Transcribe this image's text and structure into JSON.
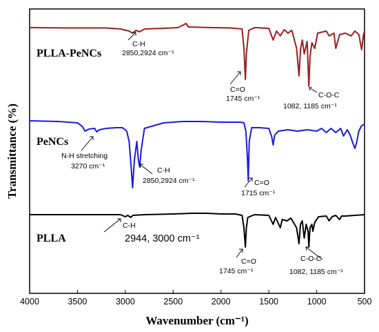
{
  "chart_data": {
    "type": "line",
    "xlabel": "Wavenumber (cm⁻¹)",
    "ylabel": "Transmittance (%)",
    "xlim": [
      4000,
      500
    ],
    "x_ticks": [
      "4000",
      "3500",
      "3000",
      "2500",
      "2000",
      "1500",
      "1000",
      "500"
    ],
    "grid": false,
    "legend": "none",
    "series": [
      {
        "name": "PLLA-PeNCs",
        "color": "#a01c1c",
        "baseline": 40,
        "points": [
          [
            4000,
            40
          ],
          [
            3600,
            40.5
          ],
          [
            3200,
            40.5
          ],
          [
            3050,
            42
          ],
          [
            2960,
            45
          ],
          [
            2924,
            48
          ],
          [
            2890,
            44
          ],
          [
            2850,
            46
          ],
          [
            2800,
            42
          ],
          [
            2600,
            41
          ],
          [
            2450,
            40
          ],
          [
            2365,
            34
          ],
          [
            2340,
            39
          ],
          [
            2100,
            40
          ],
          [
            1900,
            40.5
          ],
          [
            1780,
            42
          ],
          [
            1760,
            70
          ],
          [
            1745,
            115
          ],
          [
            1735,
            78
          ],
          [
            1710,
            44
          ],
          [
            1650,
            40
          ],
          [
            1500,
            41
          ],
          [
            1455,
            58
          ],
          [
            1420,
            45
          ],
          [
            1380,
            52
          ],
          [
            1340,
            43
          ],
          [
            1300,
            48
          ],
          [
            1260,
            44
          ],
          [
            1210,
            70
          ],
          [
            1185,
            110
          ],
          [
            1170,
            72
          ],
          [
            1150,
            58
          ],
          [
            1130,
            78
          ],
          [
            1100,
            60
          ],
          [
            1090,
            95
          ],
          [
            1082,
            125
          ],
          [
            1070,
            82
          ],
          [
            1050,
            62
          ],
          [
            1020,
            70
          ],
          [
            990,
            48
          ],
          [
            900,
            45
          ],
          [
            870,
            52
          ],
          [
            820,
            48
          ],
          [
            800,
            70
          ],
          [
            760,
            50
          ],
          [
            700,
            48
          ],
          [
            640,
            52
          ],
          [
            600,
            45
          ],
          [
            560,
            50
          ],
          [
            530,
            72
          ],
          [
            510,
            50
          ],
          [
            500,
            45
          ]
        ],
        "annotations": [
          {
            "text": "C-H",
            "kind": "label"
          },
          {
            "text": "2850,2924 cm⁻¹",
            "kind": "value"
          },
          {
            "text": "C=O",
            "kind": "label"
          },
          {
            "text": "1745 cm⁻¹",
            "kind": "value"
          },
          {
            "text": "C-O-C",
            "kind": "label"
          },
          {
            "text": "1082, 1185 cm⁻¹",
            "kind": "value"
          }
        ]
      },
      {
        "name": "PeNCs",
        "color": "#1a1ae0",
        "baseline": 175,
        "points": [
          [
            4000,
            175
          ],
          [
            3700,
            176
          ],
          [
            3500,
            178
          ],
          [
            3450,
            183
          ],
          [
            3420,
            190
          ],
          [
            3380,
            187
          ],
          [
            3320,
            186
          ],
          [
            3300,
            191
          ],
          [
            3270,
            188
          ],
          [
            3200,
            186
          ],
          [
            3100,
            185
          ],
          [
            3030,
            185
          ],
          [
            2985,
            190
          ],
          [
            2960,
            205
          ],
          [
            2940,
            240
          ],
          [
            2924,
            272
          ],
          [
            2905,
            232
          ],
          [
            2880,
            205
          ],
          [
            2865,
            230
          ],
          [
            2850,
            242
          ],
          [
            2835,
            218
          ],
          [
            2800,
            186
          ],
          [
            2600,
            178
          ],
          [
            2400,
            176
          ],
          [
            2200,
            176
          ],
          [
            2000,
            177
          ],
          [
            1800,
            177
          ],
          [
            1760,
            178
          ],
          [
            1740,
            190
          ],
          [
            1725,
            225
          ],
          [
            1715,
            262
          ],
          [
            1705,
            205
          ],
          [
            1680,
            185
          ],
          [
            1600,
            185
          ],
          [
            1500,
            186
          ],
          [
            1470,
            198
          ],
          [
            1455,
            210
          ],
          [
            1440,
            196
          ],
          [
            1400,
            190
          ],
          [
            1300,
            188
          ],
          [
            1200,
            190
          ],
          [
            1100,
            188
          ],
          [
            1000,
            190
          ],
          [
            950,
            186
          ],
          [
            900,
            192
          ],
          [
            850,
            186
          ],
          [
            800,
            192
          ],
          [
            750,
            186
          ],
          [
            720,
            197
          ],
          [
            680,
            188
          ],
          [
            650,
            196
          ],
          [
            620,
            208
          ],
          [
            600,
            215
          ],
          [
            580,
            205
          ],
          [
            560,
            190
          ],
          [
            530,
            182
          ],
          [
            500,
            180
          ]
        ],
        "annotations": [
          {
            "text": "N-H stretching",
            "kind": "label"
          },
          {
            "text": "3270 cm⁻¹",
            "kind": "value"
          },
          {
            "text": "C-H",
            "kind": "label"
          },
          {
            "text": "2850,2924 cm⁻¹",
            "kind": "value"
          },
          {
            "text": "C=O",
            "kind": "label"
          },
          {
            "text": "1715 cm⁻¹",
            "kind": "value"
          }
        ]
      },
      {
        "name": "PLLA",
        "color": "#000000",
        "baseline": 311,
        "points": [
          [
            4000,
            311
          ],
          [
            3600,
            311
          ],
          [
            3200,
            311
          ],
          [
            3050,
            311
          ],
          [
            3000,
            314
          ],
          [
            2975,
            312
          ],
          [
            2944,
            315
          ],
          [
            2920,
            312
          ],
          [
            2800,
            311
          ],
          [
            2500,
            310
          ],
          [
            2300,
            309
          ],
          [
            2150,
            309
          ],
          [
            2000,
            310
          ],
          [
            1850,
            310
          ],
          [
            1780,
            312
          ],
          [
            1760,
            330
          ],
          [
            1745,
            358
          ],
          [
            1735,
            330
          ],
          [
            1720,
            315
          ],
          [
            1650,
            311
          ],
          [
            1500,
            312
          ],
          [
            1455,
            325
          ],
          [
            1430,
            315
          ],
          [
            1380,
            330
          ],
          [
            1360,
            318
          ],
          [
            1310,
            320
          ],
          [
            1270,
            316
          ],
          [
            1210,
            330
          ],
          [
            1185,
            353
          ],
          [
            1170,
            325
          ],
          [
            1150,
            320
          ],
          [
            1130,
            345
          ],
          [
            1110,
            325
          ],
          [
            1090,
            335
          ],
          [
            1082,
            358
          ],
          [
            1070,
            330
          ],
          [
            1050,
            325
          ],
          [
            1040,
            335
          ],
          [
            1020,
            322
          ],
          [
            980,
            314
          ],
          [
            900,
            313
          ],
          [
            870,
            320
          ],
          [
            840,
            314
          ],
          [
            800,
            312
          ],
          [
            760,
            318
          ],
          [
            740,
            313
          ],
          [
            700,
            313
          ],
          [
            500,
            311
          ]
        ],
        "annotations": [
          {
            "text": "C-H",
            "kind": "label"
          },
          {
            "text": "2944, 3000 cm⁻¹",
            "kind": "value"
          },
          {
            "text": "C=O",
            "kind": "label"
          },
          {
            "text": "1745 cm⁻¹",
            "kind": "value"
          },
          {
            "text": "C-O-C",
            "kind": "label"
          },
          {
            "text": "1082, 1185 cm⁻¹",
            "kind": "value"
          }
        ]
      }
    ]
  }
}
